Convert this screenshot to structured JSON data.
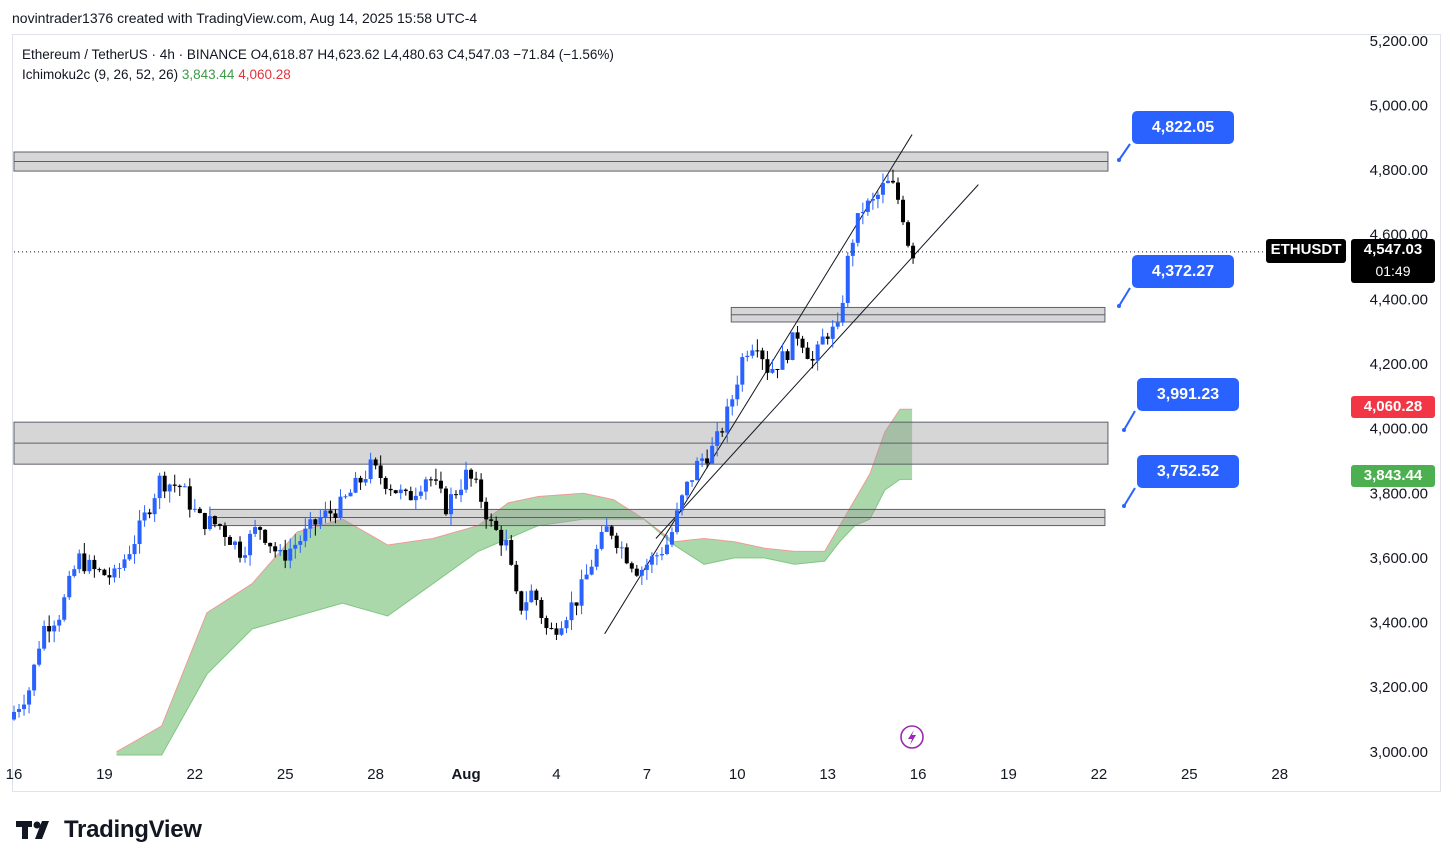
{
  "header": {
    "created_by": "novintrader1376 created with TradingView.com, Aug 14, 2025 15:58 UTC-4"
  },
  "legend": {
    "symbol_line": "Ethereum / TetherUS · 4h · BINANCE  O4,618.87  H4,623.62  L4,480.63  C4,547.03  −71.84 (−1.56%)",
    "indicator_name": "Ichimoku2c (9, 26, 52, 26)",
    "indicator_value_1": "3,843.44",
    "indicator_value_2": "4,060.28"
  },
  "price_tag": {
    "symbol": "ETHUSDT",
    "price": "4,547.03",
    "countdown": "01:49"
  },
  "cloud_tags": {
    "upper": "4,060.28",
    "lower": "3,843.44"
  },
  "callouts": [
    {
      "label": "4,822.05"
    },
    {
      "label": "4,372.27"
    },
    {
      "label": "3,991.23"
    },
    {
      "label": "3,752.52"
    }
  ],
  "brand": {
    "name": "TradingView"
  },
  "colors": {
    "bull": "#2962ff",
    "bear": "#000000",
    "cloud": "#a5d6a7",
    "cloud_edge": "#ef9a9a",
    "callout": "#2962ff",
    "tag_red": "#f23645",
    "tag_green": "#4caf50"
  },
  "chart_data": {
    "type": "candlestick",
    "y_axis": {
      "ticks": [
        3000,
        3200,
        3400,
        3600,
        3800,
        4000,
        4200,
        4400,
        4600,
        4800,
        5000,
        5200
      ],
      "range": [
        2990,
        5215
      ]
    },
    "x_axis": {
      "tick_labels": [
        "16",
        "19",
        "22",
        "25",
        "28",
        "Aug",
        "4",
        "7",
        "10",
        "13",
        "16",
        "19",
        "22",
        "25",
        "28"
      ],
      "range_days": [
        0,
        44
      ]
    },
    "zones": [
      {
        "low": 4797,
        "high": 4856,
        "x_start": 0,
        "x_end": 36.3
      },
      {
        "low": 4330,
        "high": 4375,
        "x_start": 23.8,
        "x_end": 36.2
      },
      {
        "low": 3890,
        "high": 4020,
        "x_start": 0,
        "x_end": 36.3
      },
      {
        "low": 3700,
        "high": 3750,
        "x_start": 6.5,
        "x_end": 36.2
      }
    ],
    "channel": [
      {
        "x1": 19.6,
        "y1": 3365,
        "x2": 29.8,
        "y2": 4910
      },
      {
        "x1": 21.3,
        "y1": 3660,
        "x2": 32.0,
        "y2": 4755
      }
    ],
    "price_anchor_points": [
      [
        0,
        3100
      ],
      [
        0.7,
        3200
      ],
      [
        1.1,
        3380
      ],
      [
        1.7,
        3430
      ],
      [
        2.3,
        3600
      ],
      [
        2.8,
        3560
      ],
      [
        3.5,
        3540
      ],
      [
        4.3,
        3680
      ],
      [
        5.0,
        3840
      ],
      [
        5.7,
        3820
      ],
      [
        6.3,
        3720
      ],
      [
        7.0,
        3700
      ],
      [
        7.7,
        3620
      ],
      [
        8.3,
        3700
      ],
      [
        9.0,
        3600
      ],
      [
        9.7,
        3660
      ],
      [
        10.3,
        3720
      ],
      [
        11.0,
        3760
      ],
      [
        11.5,
        3820
      ],
      [
        12.0,
        3880
      ],
      [
        12.6,
        3830
      ],
      [
        13.2,
        3780
      ],
      [
        13.9,
        3860
      ],
      [
        14.5,
        3760
      ],
      [
        15.2,
        3860
      ],
      [
        15.6,
        3800
      ],
      [
        16.0,
        3700
      ],
      [
        16.5,
        3640
      ],
      [
        16.9,
        3440
      ],
      [
        17.4,
        3500
      ],
      [
        17.9,
        3360
      ],
      [
        18.4,
        3420
      ],
      [
        18.9,
        3480
      ],
      [
        19.4,
        3600
      ],
      [
        19.9,
        3700
      ],
      [
        20.4,
        3620
      ],
      [
        20.9,
        3560
      ],
      [
        21.4,
        3600
      ],
      [
        21.9,
        3650
      ],
      [
        22.4,
        3800
      ],
      [
        22.9,
        3900
      ],
      [
        23.4,
        3940
      ],
      [
        23.9,
        4060
      ],
      [
        24.4,
        4240
      ],
      [
        24.8,
        4280
      ],
      [
        25.2,
        4180
      ],
      [
        25.7,
        4220
      ],
      [
        26.2,
        4300
      ],
      [
        26.7,
        4200
      ],
      [
        27.1,
        4300
      ],
      [
        27.5,
        4300
      ],
      [
        27.9,
        4560
      ],
      [
        28.3,
        4680
      ],
      [
        28.7,
        4700
      ],
      [
        29.1,
        4760
      ],
      [
        29.4,
        4740
      ],
      [
        29.7,
        4650
      ],
      [
        29.9,
        4547
      ]
    ],
    "cloud_top": [
      [
        3.4,
        3000
      ],
      [
        4.9,
        3080
      ],
      [
        6.4,
        3430
      ],
      [
        7.9,
        3520
      ],
      [
        9.4,
        3680
      ],
      [
        10.9,
        3720
      ],
      [
        12.4,
        3640
      ],
      [
        13.9,
        3660
      ],
      [
        15.4,
        3700
      ],
      [
        16.4,
        3770
      ],
      [
        17.4,
        3790
      ],
      [
        18.9,
        3800
      ],
      [
        19.9,
        3780
      ],
      [
        20.9,
        3720
      ],
      [
        21.9,
        3650
      ],
      [
        22.9,
        3660
      ],
      [
        23.9,
        3650
      ],
      [
        24.9,
        3630
      ],
      [
        25.9,
        3620
      ],
      [
        26.9,
        3620
      ],
      [
        27.4,
        3700
      ],
      [
        27.9,
        3780
      ],
      [
        28.4,
        3860
      ],
      [
        28.9,
        3990
      ],
      [
        29.4,
        4060
      ],
      [
        29.8,
        4060
      ]
    ],
    "cloud_bottom": [
      [
        3.4,
        2990
      ],
      [
        4.9,
        2990
      ],
      [
        6.4,
        3240
      ],
      [
        7.9,
        3380
      ],
      [
        9.4,
        3420
      ],
      [
        10.9,
        3460
      ],
      [
        12.4,
        3420
      ],
      [
        13.9,
        3520
      ],
      [
        15.4,
        3620
      ],
      [
        16.4,
        3660
      ],
      [
        17.4,
        3700
      ],
      [
        18.9,
        3720
      ],
      [
        19.9,
        3720
      ],
      [
        20.9,
        3720
      ],
      [
        21.9,
        3640
      ],
      [
        22.9,
        3580
      ],
      [
        23.9,
        3600
      ],
      [
        24.9,
        3600
      ],
      [
        25.9,
        3580
      ],
      [
        26.9,
        3590
      ],
      [
        27.4,
        3650
      ],
      [
        27.9,
        3700
      ],
      [
        28.4,
        3720
      ],
      [
        28.9,
        3810
      ],
      [
        29.4,
        3843
      ],
      [
        29.8,
        3843
      ]
    ]
  }
}
